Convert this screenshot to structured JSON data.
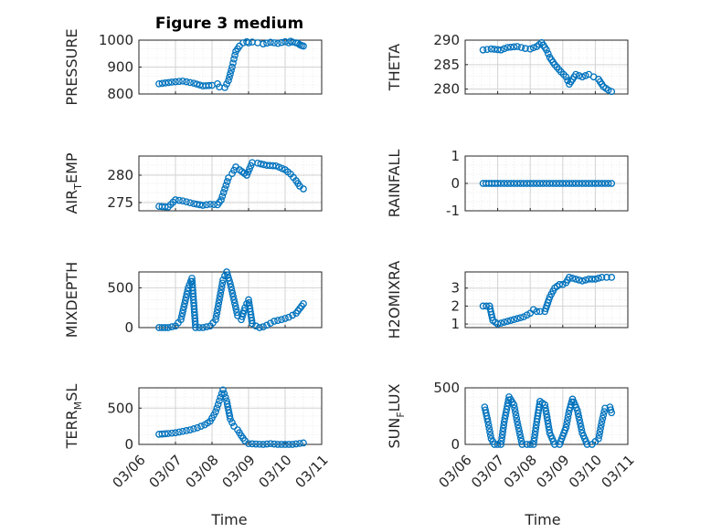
{
  "figure_title": "Figure 3 medium",
  "colors": {
    "marker": "#0072BD",
    "axis": "#262626",
    "grid": "#d3d3d3"
  },
  "chart_data": [
    {
      "type": "scatter",
      "title": "Figure 3 medium",
      "ylabel_main": "PRESSURE",
      "ylabel_sub": "",
      "ylabel_tail": "",
      "xlim": [
        0,
        5
      ],
      "ylim": [
        800,
        1000
      ],
      "yticks": [
        800,
        900,
        1000
      ],
      "yticklabels": [
        "800",
        "900",
        "1000"
      ],
      "xticks": [
        0,
        1,
        2,
        3,
        4,
        5
      ],
      "xticklabels": [],
      "x": [
        0.55,
        0.9,
        1.2,
        1.5,
        1.75,
        2.0,
        2.15,
        2.2,
        2.35,
        2.45,
        2.55,
        2.6,
        2.65,
        2.75,
        2.85,
        2.95,
        3.0,
        3.1,
        3.25,
        3.4,
        3.6,
        3.8,
        4.0,
        4.1,
        4.15,
        4.2,
        4.3,
        4.35,
        4.4,
        4.45,
        4.5
      ],
      "y": [
        838,
        844,
        848,
        840,
        830,
        832,
        838,
        826,
        824,
        850,
        900,
        930,
        958,
        978,
        990,
        994,
        990,
        993,
        990,
        986,
        992,
        988,
        994,
        990,
        996,
        993,
        990,
        988,
        983,
        980,
        978
      ]
    },
    {
      "type": "scatter",
      "title": "",
      "ylabel_main": "THETA",
      "ylabel_sub": "",
      "ylabel_tail": "",
      "xlim": [
        0,
        5
      ],
      "ylim": [
        279,
        290
      ],
      "yticks": [
        280,
        285,
        290
      ],
      "yticklabels": [
        "280",
        "285",
        "290"
      ],
      "xticks": [
        0,
        1,
        2,
        3,
        4,
        5
      ],
      "xticklabels": [],
      "x": [
        0.55,
        0.8,
        1.1,
        1.3,
        1.6,
        1.85,
        2.0,
        2.2,
        2.35,
        2.5,
        2.6,
        2.75,
        2.95,
        3.1,
        3.2,
        3.4,
        3.6,
        3.8,
        3.95,
        4.1,
        4.25,
        4.4,
        4.5
      ],
      "y": [
        288,
        288.2,
        288,
        288.5,
        288.7,
        288.3,
        288.2,
        288.7,
        289.5,
        288,
        286.5,
        285,
        283.5,
        282.5,
        281,
        283,
        282.5,
        283,
        282.5,
        282,
        280.5,
        279.8,
        279.5
      ]
    },
    {
      "type": "scatter",
      "title": "",
      "ylabel_main": "AIR",
      "ylabel_sub": "T",
      "ylabel_tail": "EMP",
      "xlim": [
        0,
        5
      ],
      "ylim": [
        273.5,
        283.5
      ],
      "yticks": [
        275,
        280
      ],
      "yticklabels": [
        "275",
        "280"
      ],
      "xticks": [
        0,
        1,
        2,
        3,
        4,
        5
      ],
      "xticklabels": [],
      "x": [
        0.55,
        0.8,
        1.0,
        1.2,
        1.5,
        1.75,
        1.95,
        2.15,
        2.25,
        2.35,
        2.45,
        2.55,
        2.65,
        2.75,
        2.95,
        3.1,
        3.25,
        3.5,
        3.75,
        4.0,
        4.15,
        4.3,
        4.4,
        4.5
      ],
      "y": [
        274.3,
        274.2,
        275.5,
        275.3,
        274.8,
        274.5,
        274.7,
        274.6,
        275.5,
        277.5,
        279.5,
        280.3,
        281.5,
        281,
        280,
        282.3,
        282.2,
        281.8,
        281.7,
        281,
        280.2,
        279,
        278,
        277.5
      ]
    },
    {
      "type": "scatter",
      "title": "",
      "ylabel_main": "RAINFALL",
      "ylabel_sub": "",
      "ylabel_tail": "",
      "xlim": [
        0,
        5
      ],
      "ylim": [
        -1,
        1
      ],
      "yticks": [
        -1,
        0,
        1
      ],
      "yticklabels": [
        "-1",
        "0",
        "1"
      ],
      "xticks": [
        0,
        1,
        2,
        3,
        4,
        5
      ],
      "xticklabels": [],
      "x": [
        0.55,
        1.0,
        1.5,
        2.0,
        2.5,
        3.0,
        3.5,
        4.0,
        4.5
      ],
      "y": [
        0,
        0,
        0,
        0,
        0,
        0,
        0,
        0,
        0
      ]
    },
    {
      "type": "scatter",
      "title": "",
      "ylabel_main": "MIXDEPTH",
      "ylabel_sub": "",
      "ylabel_tail": "",
      "xlim": [
        0,
        5
      ],
      "ylim": [
        0,
        700
      ],
      "yticks": [
        0,
        500
      ],
      "yticklabels": [
        "0",
        "500"
      ],
      "xticks": [
        0,
        1,
        2,
        3,
        4,
        5
      ],
      "xticklabels": [],
      "x": [
        0.55,
        0.8,
        1.0,
        1.15,
        1.25,
        1.35,
        1.45,
        1.55,
        1.75,
        1.95,
        2.1,
        2.2,
        2.3,
        2.4,
        2.5,
        2.6,
        2.7,
        2.8,
        2.9,
        3.0,
        3.1,
        3.2,
        3.3,
        3.4,
        3.5,
        3.7,
        3.9,
        4.1,
        4.3,
        4.5
      ],
      "y": [
        0,
        0,
        20,
        100,
        300,
        500,
        620,
        0,
        0,
        20,
        100,
        350,
        600,
        700,
        550,
        350,
        150,
        100,
        250,
        350,
        50,
        20,
        0,
        10,
        30,
        80,
        100,
        130,
        180,
        300
      ]
    },
    {
      "type": "scatter",
      "title": "",
      "ylabel_main": "H2OMIXRA",
      "ylabel_sub": "",
      "ylabel_tail": "",
      "xlim": [
        0,
        5
      ],
      "ylim": [
        0.8,
        3.9
      ],
      "yticks": [
        1,
        2,
        3
      ],
      "yticklabels": [
        "1",
        "2",
        "3"
      ],
      "xticks": [
        0,
        1,
        2,
        3,
        4,
        5
      ],
      "xticklabels": [],
      "x": [
        0.55,
        0.75,
        0.85,
        1.0,
        1.2,
        1.4,
        1.6,
        1.8,
        2.0,
        2.1,
        2.2,
        2.3,
        2.45,
        2.6,
        2.75,
        2.9,
        3.0,
        3.1,
        3.2,
        3.4,
        3.6,
        3.8,
        4.0,
        4.2,
        4.35,
        4.5
      ],
      "y": [
        2.0,
        2.0,
        1.2,
        1.0,
        1.1,
        1.2,
        1.3,
        1.4,
        1.6,
        1.8,
        1.7,
        1.7,
        1.7,
        2.5,
        3.0,
        3.2,
        3.2,
        3.3,
        3.6,
        3.5,
        3.4,
        3.5,
        3.5,
        3.6,
        3.6,
        3.6
      ]
    },
    {
      "type": "scatter",
      "title": "",
      "ylabel_main": "TERR",
      "ylabel_sub": "M",
      "ylabel_tail": "SL",
      "xlim": [
        0,
        5
      ],
      "ylim": [
        0,
        780
      ],
      "yticks": [
        0,
        500
      ],
      "yticklabels": [
        "0",
        "500"
      ],
      "xticks": [
        0,
        1,
        2,
        3,
        4,
        5
      ],
      "xticklabels": [
        "03/06",
        "03/07",
        "03/08",
        "03/09",
        "03/10",
        "03/11"
      ],
      "x": [
        0.55,
        0.8,
        1.0,
        1.2,
        1.4,
        1.6,
        1.8,
        1.95,
        2.1,
        2.2,
        2.3,
        2.4,
        2.5,
        2.6,
        2.7,
        2.8,
        2.9,
        3.0,
        3.2,
        3.4,
        3.6,
        3.8,
        4.0,
        4.2,
        4.5
      ],
      "y": [
        140,
        150,
        160,
        180,
        200,
        230,
        270,
        320,
        450,
        600,
        750,
        600,
        350,
        250,
        200,
        120,
        50,
        10,
        5,
        0,
        10,
        0,
        0,
        0,
        20
      ]
    },
    {
      "type": "scatter",
      "title": "",
      "ylabel_main": "SUN",
      "ylabel_sub": "F",
      "ylabel_tail": "LUX",
      "xlim": [
        0,
        5
      ],
      "ylim": [
        0,
        500
      ],
      "yticks": [
        0,
        500
      ],
      "yticklabels": [
        "0",
        "500"
      ],
      "xticks": [
        0,
        1,
        2,
        3,
        4,
        5
      ],
      "xticklabels": [
        "03/06",
        "03/07",
        "03/08",
        "03/09",
        "03/10",
        "03/11"
      ],
      "x": [
        0.6,
        0.7,
        0.8,
        0.9,
        1.0,
        1.1,
        1.2,
        1.35,
        1.5,
        1.6,
        1.75,
        1.9,
        2.1,
        2.2,
        2.3,
        2.45,
        2.6,
        2.75,
        2.9,
        3.1,
        3.2,
        3.3,
        3.45,
        3.6,
        3.75,
        3.9,
        4.1,
        4.2,
        4.3,
        4.45,
        4.5
      ],
      "y": [
        330,
        200,
        50,
        0,
        0,
        0,
        200,
        420,
        350,
        200,
        0,
        0,
        0,
        200,
        380,
        350,
        100,
        0,
        0,
        150,
        300,
        400,
        300,
        100,
        0,
        0,
        50,
        200,
        320,
        330,
        280
      ]
    }
  ],
  "xlabel": "Time"
}
